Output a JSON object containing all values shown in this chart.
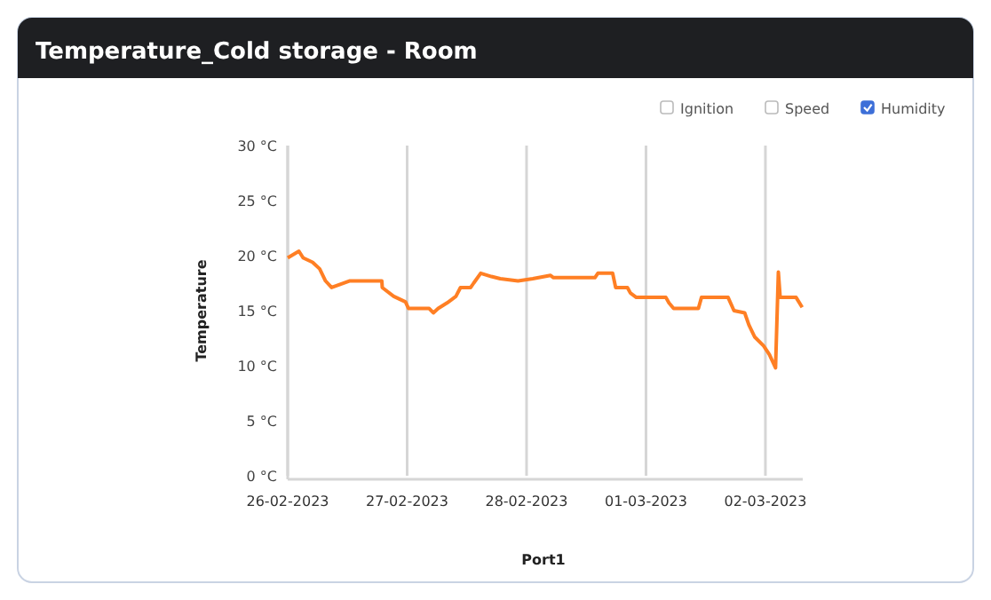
{
  "chart_data": {
    "type": "line",
    "title": "Temperature_Cold storage - Room",
    "xlabel": "Port1",
    "ylabel": "Temperature",
    "annotations": [
      "Ignition",
      "Speed",
      "Humidity"
    ],
    "x": [
      "2023-02-26T00:00",
      "2023-02-26T02:15",
      "2023-02-26T03:06",
      "2023-02-26T05:00",
      "2023-02-26T06:25",
      "2023-02-26T07:36",
      "2023-02-26T08:49",
      "2023-02-26T12:23",
      "2023-02-26T18:55",
      "2023-02-26T19:00",
      "2023-02-26T21:18",
      "2023-02-26T23:40",
      "2023-02-27T00:16",
      "2023-02-27T04:26",
      "2023-02-27T05:16",
      "2023-02-27T06:14",
      "2023-02-27T08:01",
      "2023-02-27T09:48",
      "2023-02-27T10:43",
      "2023-02-27T12:46",
      "2023-02-27T13:22",
      "2023-02-27T14:47",
      "2023-02-27T16:56",
      "2023-02-27T18:43",
      "2023-02-27T22:17",
      "2023-02-28T01:15",
      "2023-02-28T04:49",
      "2023-02-28T05:25",
      "2023-02-28T13:44",
      "2023-02-28T14:20",
      "2023-02-28T17:18",
      "2023-02-28T17:54",
      "2023-02-28T20:16",
      "2023-02-28T20:52",
      "2023-02-28T22:03",
      "2023-03-01T04:00",
      "2023-03-01T04:37",
      "2023-03-01T05:33",
      "2023-03-01T10:32",
      "2023-03-01T11:09",
      "2023-03-01T16:30",
      "2023-03-01T17:41",
      "2023-03-01T19:50",
      "2023-03-01T20:41",
      "2023-03-01T21:52",
      "2023-03-01T23:38",
      "2023-03-02T00:49",
      "2023-03-02T02:02",
      "2023-03-02T02:36",
      "2023-03-02T02:58",
      "2023-03-02T06:10",
      "2023-03-02T07:23"
    ],
    "series": [
      {
        "color": "#ff7f24",
        "values": [
          19.8,
          20.4,
          19.8,
          19.4,
          18.8,
          17.7,
          17.1,
          17.7,
          17.7,
          17.1,
          16.3,
          15.8,
          15.2,
          15.2,
          14.8,
          15.2,
          15.7,
          16.3,
          17.1,
          17.1,
          17.5,
          18.4,
          18.1,
          17.9,
          17.7,
          17.9,
          18.2,
          18.0,
          18.0,
          18.4,
          18.4,
          17.1,
          17.1,
          16.6,
          16.2,
          16.2,
          15.7,
          15.2,
          15.2,
          16.2,
          16.2,
          15.0,
          14.8,
          13.7,
          12.6,
          11.8,
          11.0,
          9.8,
          18.5,
          16.2,
          16.2,
          15.3
        ]
      }
    ],
    "xlim": [
      "2023-02-26T00:00",
      "2023-03-02T07:30"
    ],
    "xticks": [
      {
        "value": "2023-02-26",
        "label": "26-02-2023"
      },
      {
        "value": "2023-02-27",
        "label": "27-02-2023"
      },
      {
        "value": "2023-02-28",
        "label": "28-02-2023"
      },
      {
        "value": "2023-03-01",
        "label": "01-03-2023"
      },
      {
        "value": "2023-03-02",
        "label": "02-03-2023"
      }
    ],
    "ylim": [
      0,
      30
    ],
    "yticks": [
      {
        "value": 0,
        "label": "0 °C"
      },
      {
        "value": 5,
        "label": "5 °C"
      },
      {
        "value": 10,
        "label": "10 °C"
      },
      {
        "value": 15,
        "label": "15 °C"
      },
      {
        "value": 20,
        "label": "20 °C"
      },
      {
        "value": 25,
        "label": "25 °C"
      },
      {
        "value": 30,
        "label": "30 °C"
      }
    ],
    "grid": "x",
    "marker": "none",
    "line_style": "solid"
  }
}
